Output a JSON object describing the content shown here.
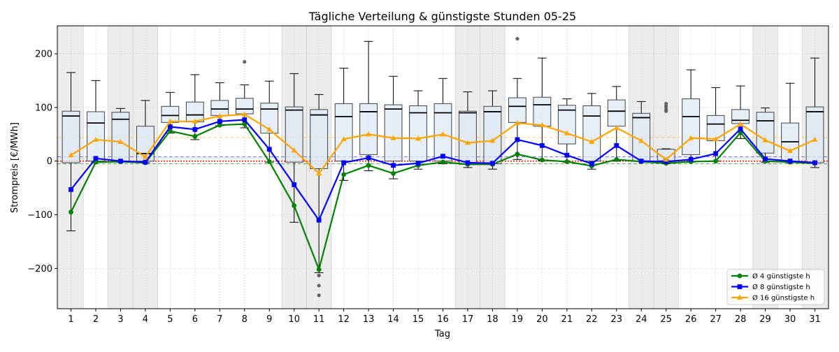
{
  "chart_data": {
    "type": "box+line",
    "title": "Tägliche Verteilung & günstigste Stunden 05-25",
    "xlabel": "Tag",
    "ylabel": "Strompreis [€/MWh]",
    "ylim": [
      -275,
      252
    ],
    "yticks": [
      -200,
      -100,
      0,
      100,
      200
    ],
    "categories": [
      "1",
      "2",
      "3",
      "4",
      "5",
      "6",
      "7",
      "8",
      "9",
      "10",
      "11",
      "12",
      "13",
      "14",
      "15",
      "16",
      "17",
      "18",
      "19",
      "20",
      "21",
      "22",
      "23",
      "24",
      "25",
      "26",
      "27",
      "28",
      "29",
      "30",
      "31"
    ],
    "weekend_days": [
      1,
      3,
      4,
      10,
      11,
      17,
      18,
      24,
      25,
      29,
      31
    ],
    "grid": true,
    "legend_position": "lower right",
    "boxes": [
      {
        "day": 1,
        "whislo": -130,
        "q1": -3,
        "med": 84,
        "q3": 93,
        "whishi": 165,
        "fliers": []
      },
      {
        "day": 2,
        "whislo": -2,
        "q1": 0,
        "med": 71,
        "q3": 92,
        "whishi": 150,
        "fliers": []
      },
      {
        "day": 3,
        "whislo": -2,
        "q1": 0,
        "med": 78,
        "q3": 91,
        "whishi": 98,
        "fliers": []
      },
      {
        "day": 4,
        "whislo": -3,
        "q1": 0,
        "med": 14,
        "q3": 65,
        "whishi": 113,
        "fliers": []
      },
      {
        "day": 5,
        "whislo": 52,
        "q1": 72,
        "med": 85,
        "q3": 102,
        "whishi": 128,
        "fliers": []
      },
      {
        "day": 6,
        "whislo": 40,
        "q1": 73,
        "med": 86,
        "q3": 110,
        "whishi": 161,
        "fliers": []
      },
      {
        "day": 7,
        "whislo": 66,
        "q1": 85,
        "med": 97,
        "q3": 113,
        "whishi": 146,
        "fliers": []
      },
      {
        "day": 8,
        "whislo": 62,
        "q1": 88,
        "med": 97,
        "q3": 117,
        "whishi": 142,
        "fliers": [
          185
        ]
      },
      {
        "day": 9,
        "whislo": -2,
        "q1": 52,
        "med": 97,
        "q3": 108,
        "whishi": 149,
        "fliers": []
      },
      {
        "day": 10,
        "whislo": -114,
        "q1": -2,
        "med": 95,
        "q3": 101,
        "whishi": 163,
        "fliers": []
      },
      {
        "day": 11,
        "whislo": -208,
        "q1": -14,
        "med": 86,
        "q3": 96,
        "whishi": 124,
        "fliers": [
          -213,
          -232,
          -250
        ]
      },
      {
        "day": 12,
        "whislo": -36,
        "q1": 0,
        "med": 83,
        "q3": 107,
        "whishi": 173,
        "fliers": []
      },
      {
        "day": 13,
        "whislo": -18,
        "q1": 12,
        "med": 92,
        "q3": 107,
        "whishi": 223,
        "fliers": []
      },
      {
        "day": 14,
        "whislo": -33,
        "q1": 0,
        "med": 97,
        "q3": 105,
        "whishi": 158,
        "fliers": []
      },
      {
        "day": 15,
        "whislo": -15,
        "q1": 0,
        "med": 90,
        "q3": 103,
        "whishi": 131,
        "fliers": []
      },
      {
        "day": 16,
        "whislo": -5,
        "q1": 0,
        "med": 90,
        "q3": 107,
        "whishi": 154,
        "fliers": []
      },
      {
        "day": 17,
        "whislo": -12,
        "q1": -6,
        "med": 90,
        "q3": 93,
        "whishi": 129,
        "fliers": []
      },
      {
        "day": 18,
        "whislo": -15,
        "q1": -5,
        "med": 92,
        "q3": 102,
        "whishi": 131,
        "fliers": []
      },
      {
        "day": 19,
        "whislo": 3,
        "q1": 72,
        "med": 102,
        "q3": 118,
        "whishi": 154,
        "fliers": [
          228
        ]
      },
      {
        "day": 20,
        "whislo": 1,
        "q1": 65,
        "med": 105,
        "q3": 119,
        "whishi": 192,
        "fliers": []
      },
      {
        "day": 21,
        "whislo": -2,
        "q1": 32,
        "med": 95,
        "q3": 104,
        "whishi": 116,
        "fliers": []
      },
      {
        "day": 22,
        "whislo": -15,
        "q1": 0,
        "med": 84,
        "q3": 103,
        "whishi": 126,
        "fliers": []
      },
      {
        "day": 23,
        "whislo": 0,
        "q1": 65,
        "med": 93,
        "q3": 114,
        "whishi": 139,
        "fliers": []
      },
      {
        "day": 24,
        "whislo": -1,
        "q1": 0,
        "med": 81,
        "q3": 89,
        "whishi": 111,
        "fliers": []
      },
      {
        "day": 25,
        "whislo": -5,
        "q1": -2,
        "med": 0,
        "q3": 22,
        "whishi": 23,
        "fliers": [
          93,
          97,
          102,
          107
        ]
      },
      {
        "day": 26,
        "whislo": -2,
        "q1": 12,
        "med": 83,
        "q3": 116,
        "whishi": 170,
        "fliers": []
      },
      {
        "day": 27,
        "whislo": 0,
        "q1": 38,
        "med": 69,
        "q3": 85,
        "whishi": 137,
        "fliers": []
      },
      {
        "day": 28,
        "whislo": 42,
        "q1": 70,
        "med": 76,
        "q3": 96,
        "whishi": 140,
        "fliers": []
      },
      {
        "day": 29,
        "whislo": -2,
        "q1": 15,
        "med": 75,
        "q3": 91,
        "whishi": 99,
        "fliers": []
      },
      {
        "day": 30,
        "whislo": -3,
        "q1": -1,
        "med": 36,
        "q3": 71,
        "whishi": 145,
        "fliers": []
      },
      {
        "day": 31,
        "whislo": -12,
        "q1": -3,
        "med": 92,
        "q3": 101,
        "whishi": 192,
        "fliers": []
      }
    ],
    "series": [
      {
        "name": "Ø 4 günstigste h",
        "color": "#008000",
        "marker": "circle",
        "values": [
          -95,
          -2,
          -1,
          -3,
          56,
          46,
          67,
          69,
          -1,
          -83,
          -202,
          -25,
          -8,
          -23,
          -8,
          -2,
          -6,
          -6,
          13,
          2,
          -1,
          -9,
          3,
          -1,
          -4,
          -1,
          0,
          53,
          0,
          -2,
          -4
        ]
      },
      {
        "name": "Ø 8 günstigste h",
        "color": "#0000ff",
        "marker": "square",
        "values": [
          -53,
          5,
          0,
          -2,
          64,
          59,
          74,
          77,
          22,
          -44,
          -110,
          -3,
          6,
          -8,
          -4,
          9,
          -3,
          -4,
          40,
          29,
          11,
          -5,
          29,
          0,
          -1,
          3,
          14,
          60,
          4,
          0,
          -3
        ]
      },
      {
        "name": "Ø 16 günstigste h",
        "color": "#ffa500",
        "marker": "triangle",
        "values": [
          11,
          40,
          36,
          8,
          74,
          74,
          84,
          87,
          59,
          20,
          -23,
          41,
          50,
          43,
          42,
          50,
          34,
          38,
          71,
          67,
          52,
          36,
          62,
          38,
          3,
          43,
          41,
          69,
          39,
          19,
          40
        ]
      }
    ],
    "reference_lines": [
      {
        "value": 44,
        "color": "#ffa500",
        "style": "dashed"
      },
      {
        "value": 8,
        "color": "#0000ff",
        "style": "dashed"
      },
      {
        "value": -5,
        "color": "#008000",
        "style": "dashed"
      },
      {
        "value": 0,
        "color": "#ff0000",
        "style": "dotted"
      }
    ],
    "colors": {
      "box_fill": "#dde9f5",
      "box_edge": "#444444",
      "weekend_band": "#d9d9d9",
      "grid": "#cccccc"
    }
  }
}
